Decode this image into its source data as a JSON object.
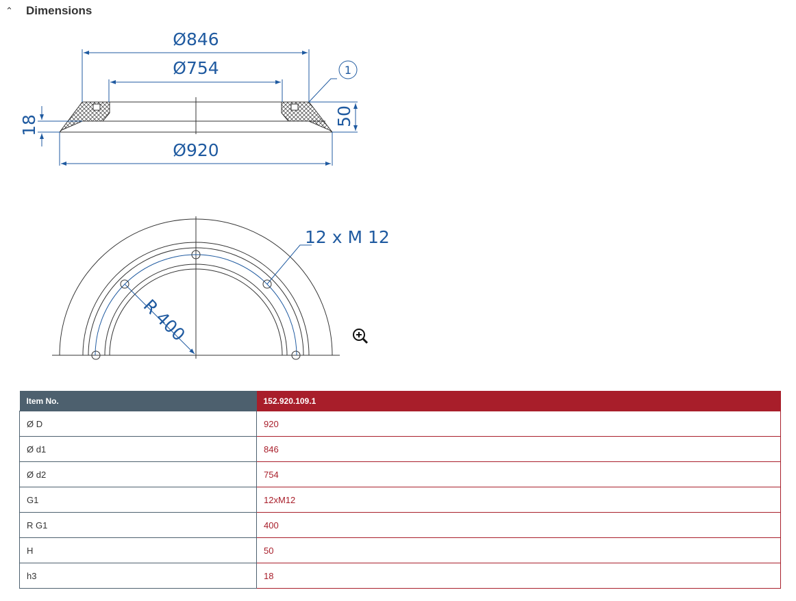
{
  "section": {
    "title": "Dimensions",
    "toggle_icon": "chevron-up-icon"
  },
  "drawing": {
    "side_view": {
      "d1": "Ø846",
      "d2": "Ø754",
      "D": "Ø920",
      "h3": "18",
      "H": "50",
      "callout": "1"
    },
    "top_view": {
      "thread": "12 x M 12",
      "radius": "R 400"
    },
    "zoom_icon": "zoom-in-icon",
    "colors": {
      "dimension": "#1f5aa0",
      "line": "#333333"
    }
  },
  "table": {
    "header": {
      "label": "Item No.",
      "value": "152.920.109.1"
    },
    "rows": [
      {
        "label": "Ø D",
        "value": "920"
      },
      {
        "label": "Ø d1",
        "value": "846"
      },
      {
        "label": "Ø d2",
        "value": "754"
      },
      {
        "label": "G1",
        "value": "12xM12"
      },
      {
        "label": "R G1",
        "value": "400"
      },
      {
        "label": "H",
        "value": "50"
      },
      {
        "label": "h3",
        "value": "18"
      }
    ],
    "colors": {
      "header_left": "#4d606e",
      "header_right": "#a81e2a"
    }
  }
}
